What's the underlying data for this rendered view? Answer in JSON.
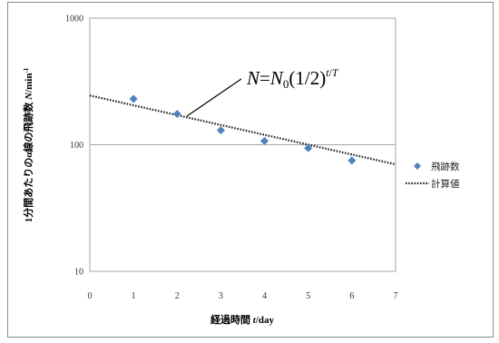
{
  "chart_data": {
    "type": "scatter",
    "xlabel_prefix": "経過時間 ",
    "xlabel_var": "t",
    "xlabel_unit": "/day",
    "ylabel_main": "1分間あたりのα線の飛跡数 ",
    "ylabel_var": "N",
    "ylabel_unit": "/min",
    "ylabel_sup": "-1",
    "x_ticks": [
      "0",
      "1",
      "2",
      "3",
      "4",
      "5",
      "6",
      "7"
    ],
    "y_ticks": [
      "10",
      "100",
      "1000"
    ],
    "xlim": [
      0,
      7
    ],
    "ylim": [
      10,
      1000
    ],
    "y_scale": "log",
    "grid": "horizontal major lines",
    "legend_position": "right",
    "series": [
      {
        "name": "飛跡数",
        "kind": "markers",
        "color": "#4f81bd",
        "x": [
          1,
          2,
          3,
          4,
          5,
          6
        ],
        "y": [
          230,
          175,
          130,
          107,
          94,
          75
        ]
      },
      {
        "name": "計算値",
        "kind": "dotted-line",
        "color": "#222222",
        "x": [
          0,
          7
        ],
        "y": [
          245,
          70
        ]
      }
    ],
    "annotation": {
      "N": "N",
      "eq": "=",
      "N0": "N",
      "N0_sub": "0",
      "base": "(1/2)",
      "exp_t": "t",
      "exp_slash": "/",
      "exp_T": "T"
    }
  }
}
